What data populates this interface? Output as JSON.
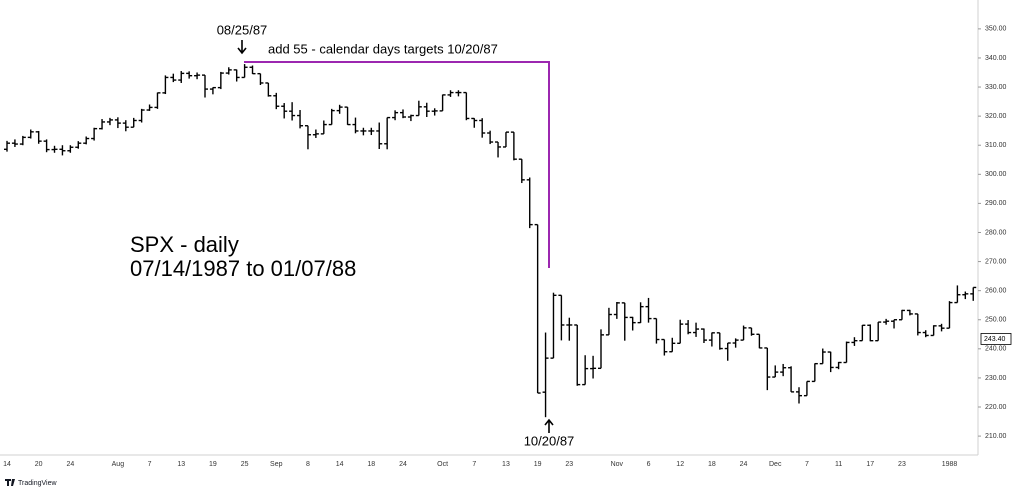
{
  "chart_data": {
    "type": "ohlc",
    "annotations": [
      "SPX - daily",
      "07/14/1987 to 01/07/88",
      "08/25/87",
      "add 55 - calendar days targets 10/20/87",
      "10/20/87"
    ],
    "footer": "TradingView",
    "color": "#000000",
    "price_label": {
      "value": 243.4,
      "label": "243.40"
    },
    "ylim": [
      203.5,
      355.8
    ],
    "yticks": [
      {
        "value": 210,
        "label": "210.00"
      },
      {
        "value": 220,
        "label": "220.00"
      },
      {
        "value": 230,
        "label": "230.00"
      },
      {
        "value": 240,
        "label": "240.00"
      },
      {
        "value": 250,
        "label": "250.00"
      },
      {
        "value": 260,
        "label": "260.00"
      },
      {
        "value": 270,
        "label": "270.00"
      },
      {
        "value": 280,
        "label": "280.00"
      },
      {
        "value": 290,
        "label": "290.00"
      },
      {
        "value": 300,
        "label": "300.00"
      },
      {
        "value": 310,
        "label": "310.00"
      },
      {
        "value": 320,
        "label": "320.00"
      },
      {
        "value": 330,
        "label": "330.00"
      },
      {
        "value": 340,
        "label": "340.00"
      },
      {
        "value": 350,
        "label": "350.00"
      }
    ],
    "categories": [
      "14",
      null,
      null,
      null,
      "20",
      null,
      null,
      null,
      "24",
      null,
      null,
      null,
      null,
      null,
      "Aug",
      null,
      null,
      null,
      "7",
      null,
      null,
      null,
      "13",
      null,
      null,
      null,
      "19",
      null,
      null,
      null,
      "25",
      null,
      null,
      null,
      "Sep",
      null,
      null,
      null,
      "8",
      null,
      null,
      null,
      "14",
      null,
      null,
      null,
      "18",
      null,
      null,
      null,
      "24",
      null,
      null,
      null,
      null,
      "Oct",
      null,
      null,
      null,
      "7",
      null,
      null,
      null,
      "13",
      null,
      null,
      null,
      "19",
      null,
      null,
      null,
      "23",
      null,
      null,
      null,
      null,
      null,
      "Nov",
      null,
      null,
      null,
      "6",
      null,
      null,
      null,
      "12",
      null,
      null,
      null,
      "18",
      null,
      null,
      null,
      "24",
      null,
      null,
      null,
      "Dec",
      null,
      null,
      null,
      "7",
      null,
      null,
      null,
      "11",
      null,
      null,
      null,
      "17",
      null,
      null,
      null,
      "23",
      null,
      null,
      null,
      null,
      null,
      "1988",
      null,
      null,
      null
    ],
    "open": [
      308.6,
      310.7,
      310.4,
      312.7,
      314.6,
      311.4,
      308.5,
      308.6,
      308.1,
      309.3,
      310.7,
      312.3,
      315.7,
      318.0,
      318.7,
      317.6,
      316.2,
      318.5,
      322.1,
      323.0,
      328.0,
      333.3,
      332.4,
      334.7,
      333.9,
      334.1,
      329.3,
      329.8,
      334.8,
      335.9,
      333.3,
      336.8,
      334.6,
      331.4,
      327.0,
      323.4,
      321.7,
      320.2,
      316.7,
      313.6,
      313.9,
      317.1,
      321.9,
      323.1,
      317.1,
      314.9,
      314.9,
      314.9,
      310.5,
      319.5,
      321.2,
      319.7,
      320.2,
      323.2,
      321.7,
      321.8,
      327.3,
      328.1,
      328.1,
      319.2,
      318.5,
      314.2,
      311.1,
      309.4,
      314.5,
      305.2,
      298.1,
      282.7,
      225.1,
      236.8,
      258.4,
      248.2,
      248.2,
      227.7,
      233.2,
      233.3,
      244.8,
      251.8,
      255.8,
      250.8,
      249.0,
      254.5,
      250.4,
      243.2,
      239.0,
      241.9,
      248.5,
      245.6,
      246.8,
      243.0,
      245.5,
      240.1,
      242.0,
      243.0,
      247.2,
      245.0,
      240.3,
      230.3,
      232.0,
      233.5,
      225.2,
      223.9,
      228.8,
      234.9,
      238.9,
      233.6,
      235.3,
      242.2,
      242.8,
      248.1,
      242.8,
      249.2,
      249.5,
      250.0,
      253.2,
      252.0,
      245.6,
      244.6,
      247.9,
      247.1,
      255.9,
      258.6,
      258.9
    ],
    "high": [
      311.5,
      312.0,
      313.2,
      315.4,
      314.9,
      312.0,
      309.8,
      310.0,
      310.0,
      311.4,
      313.0,
      316.0,
      319.0,
      319.4,
      319.6,
      318.6,
      319.4,
      322.5,
      324.0,
      328.1,
      334.0,
      334.6,
      335.5,
      335.4,
      335.0,
      334.1,
      329.9,
      335.2,
      336.8,
      336.0,
      337.9,
      337.4,
      334.6,
      331.4,
      328.0,
      324.5,
      324.8,
      322.1,
      316.7,
      315.4,
      318.5,
      322.5,
      323.9,
      323.1,
      319.5,
      316.0,
      316.0,
      317.8,
      319.5,
      322.0,
      322.3,
      320.5,
      325.3,
      324.6,
      322.7,
      327.4,
      328.9,
      328.9,
      328.1,
      319.3,
      319.3,
      315.0,
      311.1,
      314.5,
      314.5,
      305.2,
      298.9,
      282.7,
      245.6,
      259.3,
      258.4,
      250.7,
      248.2,
      237.8,
      237.6,
      246.7,
      254.1,
      256.1,
      255.8,
      251.0,
      256.0,
      257.5,
      250.4,
      243.2,
      243.8,
      250.0,
      249.9,
      249.0,
      247.0,
      245.6,
      245.5,
      242.0,
      243.6,
      248.0,
      247.2,
      245.0,
      240.3,
      234.3,
      234.8,
      234.0,
      226.8,
      228.8,
      235.0,
      240.1,
      239.0,
      235.5,
      242.5,
      244.0,
      248.2,
      248.4,
      249.2,
      250.3,
      250.0,
      253.4,
      253.4,
      252.0,
      246.4,
      248.1,
      248.6,
      256.4,
      261.8,
      259.7,
      261.1
    ],
    "low": [
      307.8,
      309.4,
      310.0,
      312.3,
      310.5,
      307.6,
      307.4,
      306.5,
      307.4,
      308.8,
      310.3,
      311.6,
      315.4,
      316.9,
      315.9,
      314.8,
      316.2,
      317.8,
      321.8,
      322.5,
      327.6,
      331.7,
      331.4,
      332.9,
      332.7,
      326.4,
      327.5,
      329.3,
      334.3,
      331.9,
      333.3,
      334.5,
      330.7,
      326.7,
      322.4,
      319.2,
      318.5,
      315.8,
      308.6,
      312.5,
      313.9,
      317.1,
      320.8,
      317.0,
      314.1,
      313.4,
      313.5,
      308.7,
      308.6,
      318.6,
      319.3,
      318.3,
      320.2,
      319.7,
      320.2,
      321.8,
      326.6,
      326.8,
      318.6,
      316.0,
      312.6,
      310.4,
      305.8,
      309.4,
      304.8,
      297.0,
      281.5,
      224.8,
      216.5,
      236.8,
      242.9,
      242.8,
      227.3,
      227.7,
      229.8,
      233.3,
      244.8,
      250.3,
      242.8,
      246.3,
      248.9,
      249.0,
      241.8,
      237.7,
      239.0,
      241.9,
      245.0,
      244.1,
      242.0,
      240.8,
      239.7,
      235.9,
      240.4,
      243.0,
      244.5,
      240.2,
      225.8,
      230.3,
      230.6,
      225.2,
      221.2,
      223.9,
      228.8,
      234.9,
      232.0,
      233.0,
      235.3,
      241.0,
      242.8,
      242.6,
      242.8,
      248.3,
      247.0,
      250.0,
      251.5,
      244.6,
      244.0,
      244.6,
      246.0,
      247.1,
      255.9,
      257.1,
      256.5
    ],
    "close": [
      310.7,
      310.4,
      312.7,
      314.6,
      311.4,
      308.5,
      308.6,
      308.1,
      309.3,
      310.7,
      312.3,
      315.7,
      318.0,
      318.7,
      317.6,
      316.2,
      318.5,
      322.1,
      323.0,
      328.0,
      333.3,
      332.4,
      334.7,
      333.9,
      334.1,
      329.3,
      329.8,
      334.8,
      335.9,
      333.3,
      336.8,
      334.6,
      331.4,
      327.0,
      323.4,
      321.7,
      320.2,
      316.7,
      313.6,
      313.9,
      317.1,
      321.9,
      323.1,
      317.1,
      314.9,
      314.9,
      314.9,
      310.5,
      319.5,
      321.2,
      319.7,
      320.2,
      323.2,
      321.7,
      321.8,
      327.3,
      328.1,
      328.1,
      319.2,
      318.5,
      314.2,
      311.1,
      309.4,
      314.5,
      305.2,
      298.1,
      282.7,
      224.8,
      236.8,
      258.4,
      248.2,
      248.2,
      227.7,
      233.2,
      233.3,
      244.8,
      251.8,
      255.8,
      250.8,
      249.0,
      254.5,
      250.4,
      243.2,
      239.0,
      241.9,
      248.5,
      245.6,
      246.8,
      243.0,
      245.5,
      240.1,
      242.0,
      243.0,
      247.2,
      245.0,
      240.3,
      230.3,
      232.0,
      233.5,
      225.2,
      223.9,
      228.8,
      234.9,
      238.9,
      233.6,
      235.3,
      242.2,
      242.8,
      248.1,
      242.8,
      249.2,
      249.5,
      250.0,
      253.2,
      252.0,
      245.6,
      244.6,
      247.9,
      247.1,
      255.9,
      258.6,
      258.9,
      261.1
    ]
  }
}
